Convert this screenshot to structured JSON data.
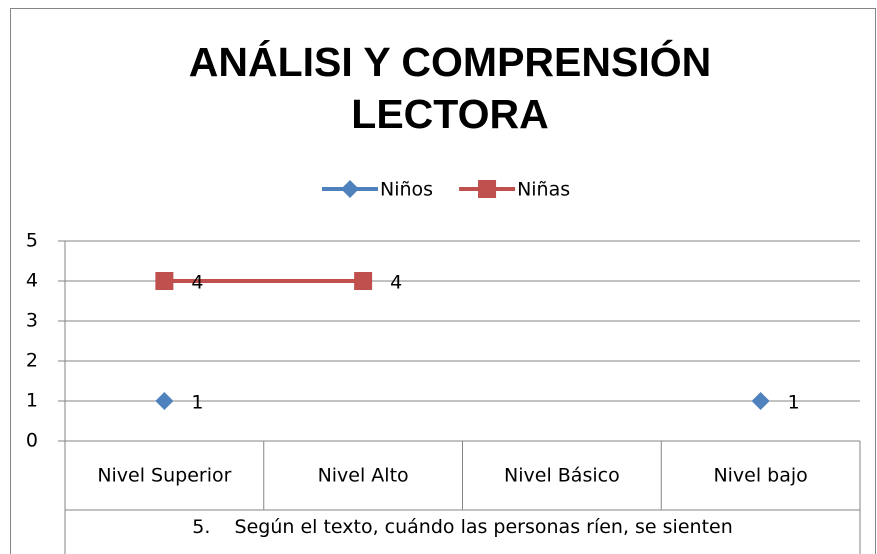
{
  "chart_data": {
    "type": "line",
    "title": "ANÁLISI Y COMPRENSIÓN LECTORA",
    "xlabel": "5.    Según el texto, cuándo las personas ríen, se sienten",
    "categories": [
      "Nivel Superior",
      "Nivel Alto",
      "Nivel Básico",
      "Nivel bajo"
    ],
    "series": [
      {
        "name": "Niños",
        "color": "#4f81bd",
        "marker": "diamond",
        "values": [
          1,
          null,
          null,
          1
        ]
      },
      {
        "name": "Niñas",
        "color": "#c0504d",
        "marker": "square",
        "values": [
          4,
          4,
          null,
          null
        ]
      }
    ],
    "ylim": [
      0,
      5
    ],
    "yticks": [
      0,
      1,
      2,
      3,
      4,
      5
    ],
    "grid": true,
    "legend": "top"
  }
}
